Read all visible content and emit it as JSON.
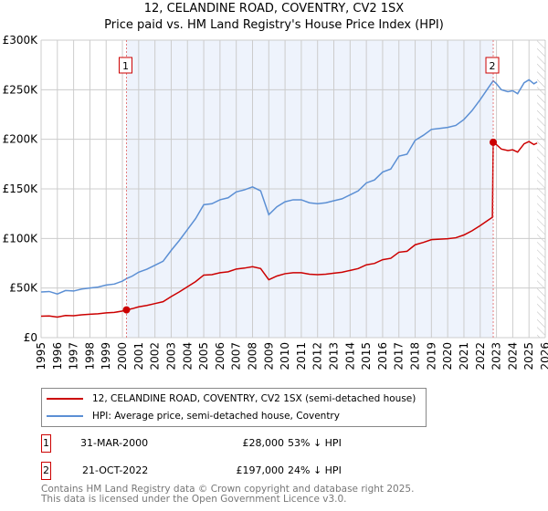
{
  "title": "12, CELANDINE ROAD, COVENTRY, CV2 1SX",
  "subtitle": "Price paid vs. HM Land Registry's House Price Index (HPI)",
  "chart_data": {
    "type": "line",
    "ylim": [
      0,
      300000
    ],
    "xlim": [
      1995,
      2026
    ],
    "yticks": [
      {
        "v": 0,
        "label": "£0"
      },
      {
        "v": 50000,
        "label": "£50K"
      },
      {
        "v": 100000,
        "label": "£100K"
      },
      {
        "v": 150000,
        "label": "£150K"
      },
      {
        "v": 200000,
        "label": "£200K"
      },
      {
        "v": 250000,
        "label": "£250K"
      },
      {
        "v": 300000,
        "label": "£300K"
      }
    ],
    "xticks": [
      "1995",
      "1996",
      "1997",
      "1998",
      "1999",
      "2000",
      "2001",
      "2002",
      "2003",
      "2004",
      "2005",
      "2006",
      "2007",
      "2008",
      "2009",
      "2010",
      "2011",
      "2012",
      "2013",
      "2014",
      "2015",
      "2016",
      "2017",
      "2018",
      "2019",
      "2020",
      "2021",
      "2022",
      "2023",
      "2024",
      "2025",
      "2026"
    ],
    "grid": true,
    "series": [
      {
        "name": "HPI: Average price, semi-detached house, Coventry",
        "color": "#5b8fd4",
        "x": [
          1995,
          1995.5,
          1996,
          1996.5,
          1997,
          1997.5,
          1998,
          1998.5,
          1999,
          1999.5,
          2000,
          2000.25,
          2000.6,
          2001,
          2001.5,
          2002,
          2002.5,
          2003,
          2003.5,
          2004,
          2004.5,
          2005,
          2005.5,
          2006,
          2006.5,
          2007,
          2007.5,
          2008,
          2008.5,
          2009,
          2009.5,
          2010,
          2010.5,
          2011,
          2011.5,
          2012,
          2012.5,
          2013,
          2013.5,
          2014,
          2014.5,
          2015,
          2015.5,
          2016,
          2016.5,
          2017,
          2017.5,
          2018,
          2018.5,
          2019,
          2019.5,
          2020,
          2020.5,
          2021,
          2021.5,
          2022,
          2022.5,
          2022.8,
          2023,
          2023.3,
          2023.7,
          2024,
          2024.3,
          2024.7,
          2025,
          2025.3,
          2025.5
        ],
        "y": [
          46000,
          46500,
          44000,
          47500,
          47000,
          49000,
          50000,
          51000,
          53000,
          54000,
          57000,
          59500,
          62000,
          66000,
          69000,
          73000,
          77000,
          88000,
          98000,
          109000,
          120000,
          134000,
          135000,
          139000,
          141000,
          147000,
          149000,
          152000,
          148000,
          124000,
          132000,
          137000,
          139000,
          139000,
          136000,
          135000,
          136000,
          138000,
          140000,
          144000,
          148000,
          156000,
          159000,
          167000,
          170000,
          183000,
          185000,
          199000,
          204000,
          210000,
          211000,
          212000,
          214000,
          220000,
          229000,
          240000,
          252000,
          259000,
          256000,
          250000,
          248000,
          249000,
          246000,
          257000,
          260000,
          256000,
          258000
        ]
      },
      {
        "name": "12, CELANDINE ROAD, COVENTRY, CV2 1SX (semi-detached house)",
        "color": "#cc0000",
        "derived_from_hpi": true
      }
    ],
    "sales": [
      {
        "id": "1",
        "x": 2000.25,
        "price": 28000,
        "date": "31-MAR-2000",
        "price_label": "£28,000",
        "hpi_delta": "53% ↓ HPI"
      },
      {
        "id": "2",
        "x": 2022.8,
        "price": 197000,
        "date": "21-OCT-2022",
        "price_label": "£197,000",
        "hpi_delta": "24% ↓ HPI"
      }
    ],
    "forecast_from": 2025.5,
    "legend": "bottom"
  },
  "footer": [
    "Contains HM Land Registry data © Crown copyright and database right 2025.",
    "This data is licensed under the Open Government Licence v3.0."
  ]
}
